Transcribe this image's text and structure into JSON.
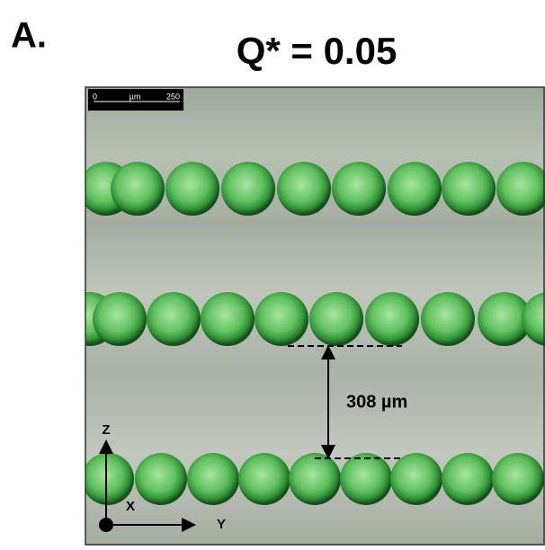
{
  "panel_label": "A.",
  "title": "Q* = 0.05",
  "scale_bar": {
    "start": "0",
    "unit": "µm",
    "end": "250"
  },
  "measurement": "308 µm",
  "axes": {
    "z": "Z",
    "x": "X",
    "y": "Y"
  }
}
